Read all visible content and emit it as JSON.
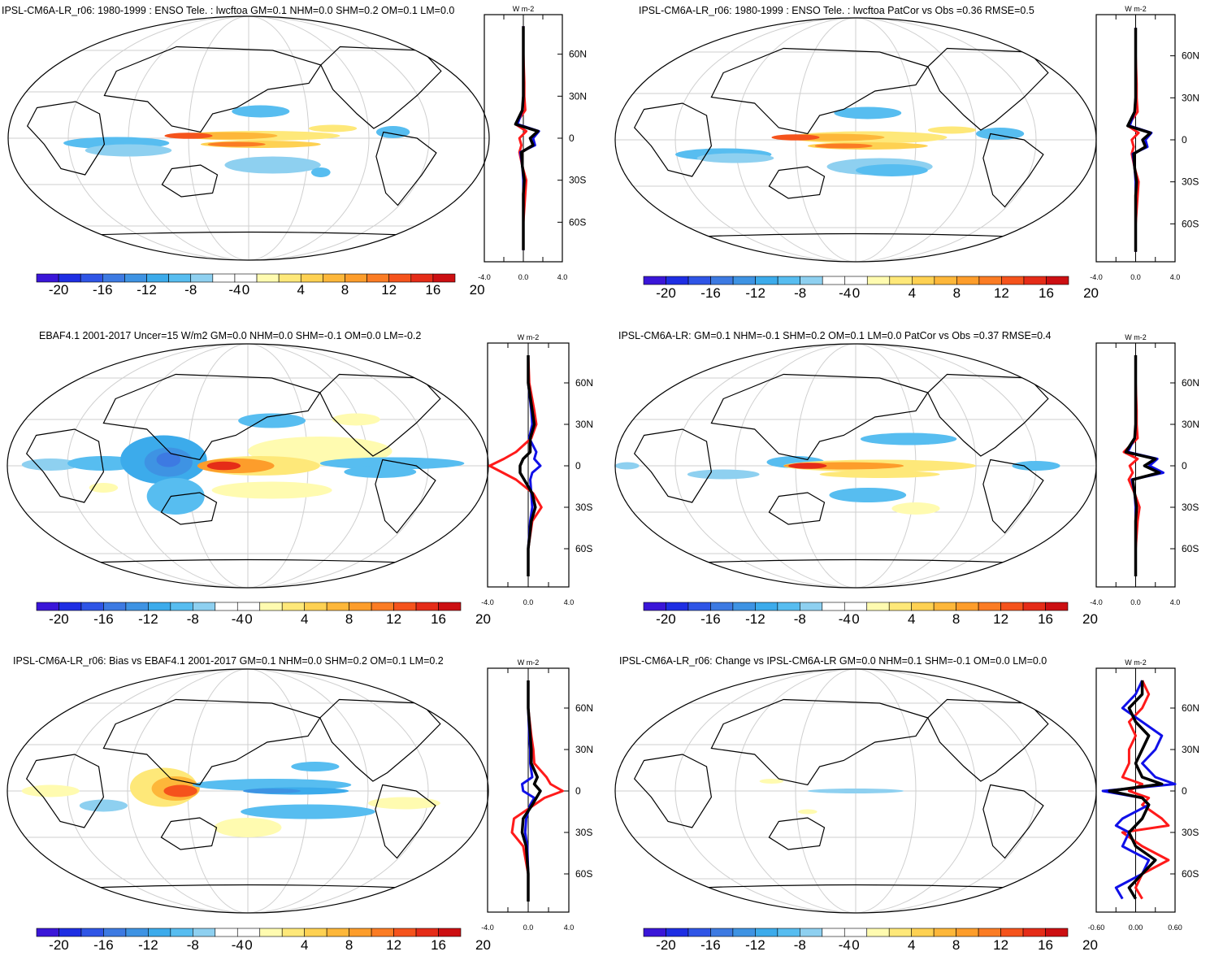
{
  "colorbar": {
    "colors": [
      "#3a16d8",
      "#1e2ee3",
      "#2f55e6",
      "#3d7ae2",
      "#3e93e3",
      "#3cabeb",
      "#57bdf0",
      "#8ed0f0",
      "#ffffff",
      "#ffffff",
      "#fffbb0",
      "#fee879",
      "#fed152",
      "#fdb73a",
      "#fd9d2b",
      "#fb7c24",
      "#f5531c",
      "#e52c18",
      "#cc0f12"
    ],
    "labels": [
      "-20",
      "-16",
      "-12",
      "-8",
      "-4",
      "0",
      "4",
      "8",
      "12",
      "16",
      "20"
    ]
  },
  "profile_colors": {
    "model": "#ff1a1a",
    "obs": "#1010e8",
    "total": "#000000"
  },
  "panels": [
    {
      "id": "tl",
      "title": "IPSL-CM6A-LR_r06: 1980-1999 : ENSO Tele. : lwcftoa GM=0.1 NHM=0.0 SHM=0.2 OM=0.1 LM=0.0",
      "unit": "W m-2",
      "lat_labels": [
        "60N",
        "30N",
        "0",
        "30S",
        "60S"
      ],
      "xtick_labels": [
        "-4.0",
        "0.0",
        "4.0"
      ],
      "chart_data": {
        "type": "map-with-zonal-profile",
        "xlim": [
          -4.0,
          4.0
        ],
        "lat": [
          80,
          60,
          40,
          30,
          20,
          10,
          5,
          0,
          -5,
          -10,
          -20,
          -30,
          -40,
          -60,
          -80
        ],
        "series": [
          {
            "values": [
              0,
              0,
              0.1,
              0.1,
              0.2,
              -0.8,
              0.3,
              -0.4,
              -0.2,
              -0.4,
              -0.1,
              0.3,
              0.2,
              0,
              0
            ]
          },
          {
            "values": [
              0,
              0,
              0,
              0,
              -0.1,
              -0.6,
              1.6,
              1.0,
              1.2,
              -0.3,
              -0.1,
              0,
              0,
              0,
              0
            ]
          },
          {
            "values": [
              0,
              0,
              0,
              0,
              -0.1,
              -0.8,
              1.5,
              0.7,
              1.0,
              -0.2,
              -0.1,
              0.1,
              0,
              0,
              0
            ]
          }
        ]
      }
    },
    {
      "id": "tr",
      "title": "IPSL-CM6A-LR_r06: 1980-1999 : ENSO Tele. : lwcftoa PatCor vs Obs =0.36 RMSE=0.5",
      "unit": "W m-2",
      "lat_labels": [
        "60N",
        "30N",
        "0",
        "30S",
        "60S"
      ],
      "xtick_labels": [
        "-4.0",
        "0.0",
        "4.0"
      ],
      "chart_data": {
        "type": "map-with-zonal-profile",
        "xlim": [
          -4.0,
          4.0
        ],
        "lat": [
          80,
          60,
          40,
          30,
          20,
          10,
          5,
          0,
          -5,
          -10,
          -20,
          -30,
          -40,
          -60,
          -80
        ],
        "series": [
          {
            "values": [
              0,
              0,
              0.1,
              0.1,
              0.2,
              -0.8,
              0.3,
              -0.4,
              -0.2,
              -0.4,
              -0.1,
              0.3,
              0.2,
              0,
              0
            ]
          },
          {
            "values": [
              0,
              0,
              0,
              0,
              -0.1,
              -0.6,
              1.6,
              1.0,
              1.2,
              -0.3,
              -0.1,
              0,
              0,
              0,
              0
            ]
          },
          {
            "values": [
              0,
              0,
              0,
              0,
              -0.1,
              -0.8,
              1.5,
              0.7,
              1.0,
              -0.2,
              -0.1,
              0.1,
              0,
              0,
              0
            ]
          }
        ]
      }
    },
    {
      "id": "ml",
      "title": "EBAF4.1 2001-2017 Uncer=15 W/m2 GM=0.0 NHM=0.0 SHM=-0.1 OM=0.0 LM=-0.2",
      "unit": "W m-2",
      "lat_labels": [
        "60N",
        "30N",
        "0",
        "30S",
        "60S"
      ],
      "xtick_labels": [
        "-4.0",
        "0.0",
        "4.0"
      ],
      "chart_data": {
        "type": "map-with-zonal-profile",
        "xlim": [
          -4.0,
          4.0
        ],
        "lat": [
          80,
          60,
          40,
          30,
          20,
          10,
          5,
          0,
          -5,
          -10,
          -20,
          -30,
          -40,
          -60,
          -80
        ],
        "series": [
          {
            "values": [
              0,
              0.1,
              0.6,
              0.8,
              0.3,
              -1.2,
              -2.4,
              -3.8,
              -2.5,
              -1.2,
              0.5,
              1.3,
              0.4,
              0,
              0
            ]
          },
          {
            "values": [
              0,
              0,
              0.3,
              0.4,
              0.1,
              0.8,
              0.6,
              1.2,
              0.4,
              0.2,
              0.3,
              0.4,
              0.2,
              0,
              0
            ]
          },
          {
            "values": [
              0,
              0,
              0.4,
              0.6,
              0.2,
              0.2,
              -0.5,
              -0.8,
              -0.8,
              -0.4,
              0.4,
              0.7,
              0.3,
              0,
              0
            ]
          }
        ]
      }
    },
    {
      "id": "mr",
      "title": "IPSL-CM6A-LR: GM=0.1 NHM=-0.1 SHM=0.2 OM=0.1 LM=0.0 PatCor vs Obs =0.37 RMSE=0.4",
      "unit": "W m-2",
      "lat_labels": [
        "60N",
        "30N",
        "0",
        "30S",
        "60S"
      ],
      "xtick_labels": [
        "-4.0",
        "0.0",
        "4.0"
      ],
      "chart_data": {
        "type": "map-with-zonal-profile",
        "xlim": [
          -4.0,
          4.0
        ],
        "lat": [
          80,
          60,
          40,
          30,
          20,
          10,
          5,
          0,
          -5,
          -10,
          -20,
          -30,
          -40,
          -60,
          -80
        ],
        "series": [
          {
            "values": [
              0,
              0,
              0.1,
              0.1,
              0.2,
              -1.2,
              0.2,
              -0.6,
              -0.3,
              -0.7,
              -0.1,
              0.4,
              0.2,
              0,
              0
            ]
          },
          {
            "values": [
              0,
              0,
              0,
              0,
              -0.1,
              -0.8,
              2.2,
              1.4,
              2.8,
              -0.4,
              -0.1,
              0,
              0,
              0,
              0
            ]
          },
          {
            "values": [
              0,
              0,
              0,
              0,
              -0.1,
              -1.0,
              2.0,
              0.9,
              2.4,
              -0.3,
              -0.1,
              0.1,
              0,
              0,
              0
            ]
          }
        ]
      }
    },
    {
      "id": "bl",
      "title": "IPSL-CM6A-LR_r06: Bias vs EBAF4.1 2001-2017 GM=0.1 NHM=0.0 SHM=0.2 OM=0.1 LM=0.2",
      "unit": "W m-2",
      "lat_labels": [
        "60N",
        "30N",
        "0",
        "30S",
        "60S"
      ],
      "xtick_labels": [
        "-4.0",
        "0.0",
        "4.0"
      ],
      "chart_data": {
        "type": "map-with-zonal-profile",
        "xlim": [
          -4.0,
          4.0
        ],
        "lat": [
          80,
          60,
          40,
          30,
          20,
          10,
          5,
          0,
          -5,
          -10,
          -20,
          -30,
          -40,
          -60,
          -80
        ],
        "series": [
          {
            "values": [
              0,
              0,
              0.3,
              0.5,
              0.6,
              1.8,
              2.2,
              3.4,
              1.6,
              0.6,
              -1.4,
              -1.6,
              -0.5,
              0,
              0
            ]
          },
          {
            "values": [
              0,
              0,
              0.1,
              0.2,
              0.2,
              0.4,
              -0.6,
              -0.5,
              0.6,
              0.2,
              -0.2,
              -0.3,
              -0.1,
              0,
              0
            ]
          },
          {
            "values": [
              0,
              0,
              0.2,
              0.3,
              0.3,
              0.9,
              0.6,
              1.2,
              0.8,
              0.4,
              -0.5,
              -0.6,
              -0.2,
              0,
              0
            ]
          }
        ]
      }
    },
    {
      "id": "br",
      "title": "IPSL-CM6A-LR_r06: Change vs IPSL-CM6A-LR GM=0.0 NHM=0.1 SHM=-0.1 OM=0.0 LM=0.0",
      "unit": "W m-2",
      "lat_labels": [
        "60N",
        "30N",
        "0",
        "30S",
        "60S"
      ],
      "xtick_labels": [
        "-0.60",
        "0.00",
        "0.60"
      ],
      "chart_data": {
        "type": "map-with-zonal-profile",
        "xlim": [
          -0.6,
          0.6
        ],
        "lat": [
          80,
          70,
          60,
          50,
          40,
          30,
          20,
          10,
          5,
          0,
          -5,
          -10,
          -20,
          -25,
          -30,
          -40,
          -50,
          -60,
          -70,
          -78
        ],
        "series": [
          {
            "values": [
              0.1,
              0.2,
              0.1,
              -0.1,
              0.0,
              -0.1,
              -0.1,
              -0.2,
              0.1,
              -0.1,
              0.2,
              0.1,
              0.4,
              0.5,
              -0.2,
              0.1,
              0.5,
              0.1,
              0,
              0.1
            ]
          },
          {
            "values": [
              0.1,
              0.0,
              -0.2,
              0.1,
              0.4,
              0.3,
              0.1,
              0.3,
              0.6,
              -0.5,
              0.1,
              0.2,
              -0.2,
              -0.3,
              -0.1,
              -0.2,
              0.2,
              0.1,
              -0.3,
              -0.2
            ]
          },
          {
            "values": [
              0.1,
              0.1,
              -0.1,
              0.0,
              0.2,
              0.1,
              0.0,
              0.1,
              0.4,
              -0.4,
              0.1,
              0.2,
              0.1,
              0.0,
              -0.1,
              0.0,
              0.3,
              0.1,
              -0.1,
              0.0
            ]
          }
        ]
      }
    }
  ]
}
